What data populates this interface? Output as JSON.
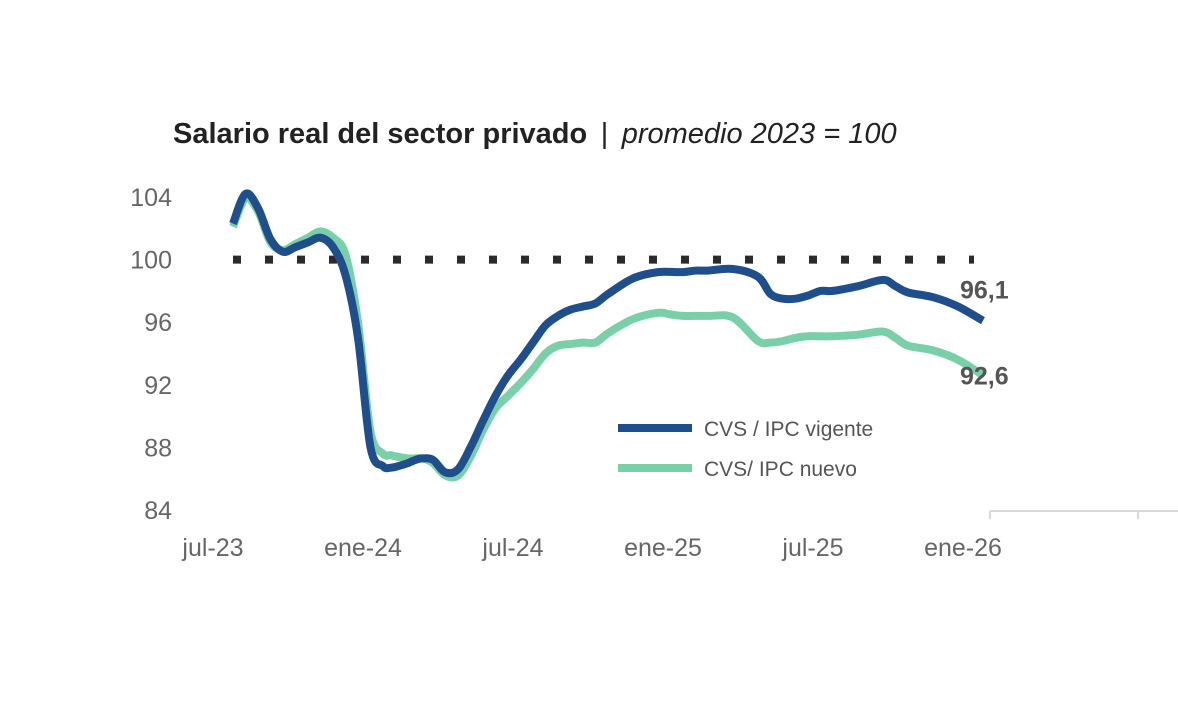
{
  "chart_data": {
    "type": "line",
    "title": "Salario real del sector privado",
    "title_separator": "|",
    "subtitle": "promedio 2023 = 100",
    "xlabel": "",
    "ylabel": "",
    "ylim": [
      84,
      104
    ],
    "yticks": [
      "104",
      "100",
      "96",
      "92",
      "88",
      "84"
    ],
    "ytick_values": [
      104,
      100,
      96,
      92,
      88,
      84
    ],
    "xlim": [
      0,
      30
    ],
    "xticks": [
      "jul-23",
      "ene-24",
      "jul-24",
      "ene-25",
      "jul-25",
      "ene-26"
    ],
    "xtick_values": [
      0,
      6,
      12,
      18,
      24,
      30
    ],
    "reference_line": {
      "y": 100,
      "style": "dotted"
    },
    "legend_position": "bottom-right",
    "series": [
      {
        "name": "CVS / IPC vigente",
        "color": "#1f4e8c",
        "end_label": "96,1",
        "x": [
          0,
          0.5,
          1,
          1.5,
          2,
          2.5,
          3,
          3.5,
          4,
          4.5,
          5,
          5.5,
          6,
          6.3,
          6.6,
          7,
          7.3,
          7.6,
          8,
          8.5,
          9,
          9.5,
          10,
          10.5,
          11,
          11.5,
          12,
          12.5,
          13,
          13.5,
          14,
          14.5,
          15,
          16,
          17,
          18,
          18.5,
          19,
          20,
          21,
          21.5,
          22,
          22.5,
          23,
          23.5,
          24,
          25,
          26,
          26.5,
          27,
          28,
          29,
          30
        ],
        "values": [
          102.3,
          104.2,
          103.3,
          101.3,
          100.5,
          100.8,
          101.1,
          101.4,
          100.8,
          99.0,
          95.0,
          88.0,
          86.8,
          86.7,
          86.8,
          87.0,
          87.2,
          87.3,
          87.2,
          86.4,
          86.6,
          88.0,
          89.7,
          91.3,
          92.6,
          93.6,
          94.7,
          95.8,
          96.4,
          96.8,
          97.0,
          97.2,
          97.8,
          98.8,
          99.2,
          99.2,
          99.3,
          99.3,
          99.4,
          98.9,
          97.8,
          97.5,
          97.5,
          97.7,
          98.0,
          98.0,
          98.3,
          98.7,
          98.3,
          97.9,
          97.6,
          97.0,
          96.1
        ]
      },
      {
        "name": "CVS/ IPC nuevo",
        "color": "#79d0a8",
        "end_label": "92,6",
        "x": [
          0,
          0.5,
          1,
          1.5,
          2,
          2.5,
          3,
          3.5,
          4,
          4.5,
          5,
          5.5,
          6,
          6.3,
          6.6,
          7,
          7.3,
          7.6,
          8,
          8.5,
          9,
          9.5,
          10,
          10.5,
          11,
          11.5,
          12,
          12.5,
          13,
          13.5,
          14,
          14.5,
          15,
          16,
          17,
          17.5,
          18,
          19,
          20,
          21,
          21.5,
          22,
          22.5,
          23,
          23.5,
          24,
          25,
          26,
          26.5,
          27,
          28,
          29,
          30
        ],
        "values": [
          102.1,
          103.9,
          103.1,
          101.1,
          100.6,
          101.0,
          101.4,
          101.8,
          101.4,
          100.3,
          96.0,
          89.0,
          87.6,
          87.5,
          87.4,
          87.3,
          87.3,
          87.3,
          87.0,
          86.2,
          86.2,
          87.4,
          89.1,
          90.5,
          91.3,
          92.1,
          93.0,
          94.0,
          94.5,
          94.6,
          94.7,
          94.7,
          95.3,
          96.2,
          96.6,
          96.5,
          96.4,
          96.4,
          96.3,
          94.8,
          94.7,
          94.8,
          95.0,
          95.1,
          95.1,
          95.1,
          95.2,
          95.4,
          95.0,
          94.5,
          94.2,
          93.6,
          92.6
        ]
      }
    ]
  }
}
